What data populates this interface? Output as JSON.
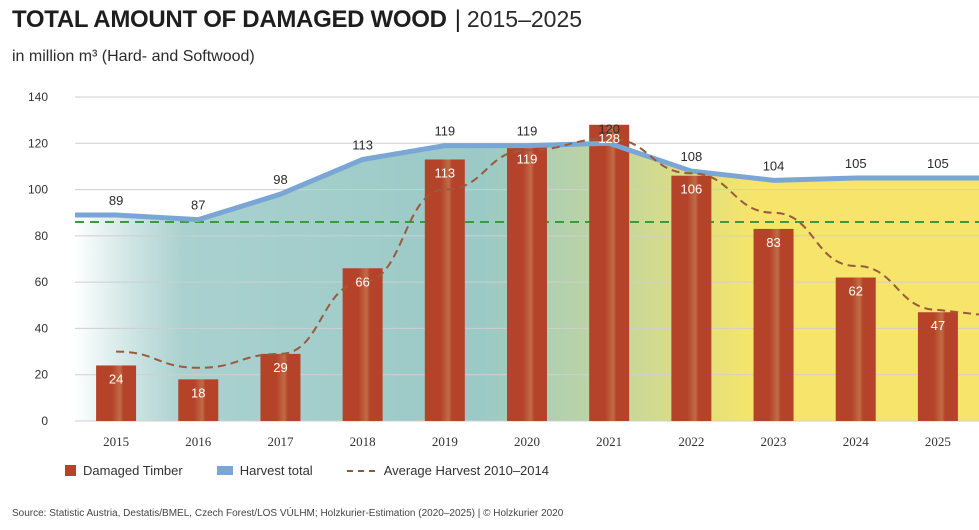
{
  "header": {
    "title": "TOTAL AMOUNT OF DAMAGED WOOD",
    "separator": "|",
    "years": "2015–2025",
    "subtitle": "in million m³  (Hard- and Softwood)"
  },
  "legend": {
    "damaged": "Damaged Timber",
    "harvest": "Harvest total",
    "average": "Average Harvest 2010–2014"
  },
  "source": "Source: Statistic Austria, Destatis/BMEL, Czech Forest/LOS VÚLHM; Holzkurier-Estimation (2020–2025) | © Holzkurier 2020",
  "colors": {
    "bar": "#b5432a",
    "harvest_line": "#7aa6d6",
    "average_line": "#3a9a3e",
    "dashed_line": "#9a5a3c",
    "bg_teal": "#8fc3c0",
    "bg_yellow": "#f5e25a"
  },
  "chart_data": {
    "type": "bar",
    "title": "TOTAL AMOUNT OF DAMAGED WOOD | 2015–2025",
    "subtitle": "in million m³  (Hard- and Softwood)",
    "categories": [
      "2015",
      "2016",
      "2017",
      "2018",
      "2019",
      "2020",
      "2021",
      "2022",
      "2023",
      "2024",
      "2025"
    ],
    "series": [
      {
        "name": "Damaged Timber",
        "type": "bar",
        "values": [
          24,
          18,
          29,
          66,
          113,
          119,
          128,
          106,
          83,
          62,
          47
        ]
      },
      {
        "name": "Harvest total",
        "type": "area-line",
        "values": [
          89,
          87,
          98,
          113,
          119,
          119,
          120,
          108,
          104,
          105,
          105
        ]
      },
      {
        "name": "Average Harvest 2010–2014",
        "type": "hline",
        "value": 86
      }
    ],
    "damaged_trend": [
      30,
      23,
      29,
      60,
      100,
      117,
      122,
      107,
      90,
      67,
      48
    ],
    "ylim": [
      0,
      140
    ],
    "yticks": [
      0,
      20,
      40,
      60,
      80,
      100,
      120,
      140
    ],
    "grid": "horizontal",
    "legend_position": "bottom-left"
  }
}
